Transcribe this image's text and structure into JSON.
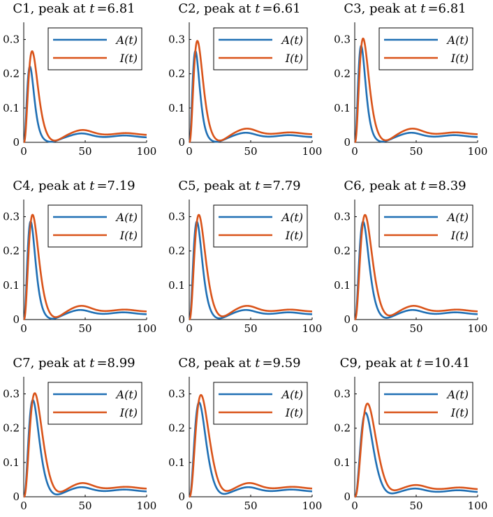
{
  "chart_data": [
    {
      "type": "line",
      "title": "C1, peak at t =6.81",
      "title_prefix": "C1, peak at ",
      "title_var": "t",
      "title_value": "=6.81",
      "xlim": [
        0,
        100
      ],
      "ylim": [
        0,
        0.35
      ],
      "xticks": [
        0,
        50,
        100
      ],
      "yticks": [
        0,
        0.1,
        0.2,
        0.3
      ],
      "xtick_labels": [
        "0",
        "50",
        "100"
      ],
      "ytick_labels": [
        "0",
        "0.1",
        "0.2",
        "0.3"
      ],
      "legend": [
        "A(t)",
        "I(t)"
      ],
      "legend_position": "top-right",
      "series": [
        {
          "name": "A(t)",
          "color": "#1f6fb4",
          "peak_t": 5.0,
          "peak_value": 0.22,
          "bump_t": 47,
          "bump_value": 0.026,
          "tail_value": 0.014
        },
        {
          "name": "I(t)",
          "color": "#d95319",
          "peak_t": 6.81,
          "peak_value": 0.265,
          "bump_t": 48,
          "bump_value": 0.036,
          "tail_value": 0.021
        }
      ]
    },
    {
      "type": "line",
      "title": "C2, peak at t =6.61",
      "title_prefix": "C2, peak at ",
      "title_var": "t",
      "title_value": "=6.61",
      "xlim": [
        0,
        100
      ],
      "ylim": [
        0,
        0.35
      ],
      "xticks": [
        0,
        50,
        100
      ],
      "yticks": [
        0,
        0.1,
        0.2,
        0.3
      ],
      "xtick_labels": [
        "0",
        "50",
        "100"
      ],
      "ytick_labels": [
        "0",
        "0.1",
        "0.2",
        "0.3"
      ],
      "legend": [
        "A(t)",
        "I(t)"
      ],
      "legend_position": "top-right",
      "series": [
        {
          "name": "A(t)",
          "color": "#1f6fb4",
          "peak_t": 5.0,
          "peak_value": 0.265,
          "bump_t": 46,
          "bump_value": 0.028,
          "tail_value": 0.015
        },
        {
          "name": "I(t)",
          "color": "#d95319",
          "peak_t": 6.61,
          "peak_value": 0.295,
          "bump_t": 47,
          "bump_value": 0.04,
          "tail_value": 0.023
        }
      ]
    },
    {
      "type": "line",
      "title": "C3, peak at t =6.81",
      "title_prefix": "C3, peak at ",
      "title_var": "t",
      "title_value": "=6.81",
      "xlim": [
        0,
        100
      ],
      "ylim": [
        0,
        0.35
      ],
      "xticks": [
        0,
        50,
        100
      ],
      "yticks": [
        0,
        0.1,
        0.2,
        0.3
      ],
      "xtick_labels": [
        "0",
        "50",
        "100"
      ],
      "ytick_labels": [
        "0",
        "0.1",
        "0.2",
        "0.3"
      ],
      "legend": [
        "A(t)",
        "I(t)"
      ],
      "legend_position": "top-right",
      "series": [
        {
          "name": "A(t)",
          "color": "#1f6fb4",
          "peak_t": 5.2,
          "peak_value": 0.28,
          "bump_t": 46,
          "bump_value": 0.028,
          "tail_value": 0.015
        },
        {
          "name": "I(t)",
          "color": "#d95319",
          "peak_t": 6.81,
          "peak_value": 0.302,
          "bump_t": 47,
          "bump_value": 0.04,
          "tail_value": 0.023
        }
      ]
    },
    {
      "type": "line",
      "title": "C4, peak at t =7.19",
      "title_prefix": "C4, peak at ",
      "title_var": "t",
      "title_value": "=7.19",
      "xlim": [
        0,
        100
      ],
      "ylim": [
        0,
        0.35
      ],
      "xticks": [
        0,
        50,
        100
      ],
      "yticks": [
        0,
        0.1,
        0.2,
        0.3
      ],
      "xtick_labels": [
        "0",
        "50",
        "100"
      ],
      "ytick_labels": [
        "0",
        "0.1",
        "0.2",
        "0.3"
      ],
      "legend": [
        "A(t)",
        "I(t)"
      ],
      "legend_position": "top-right",
      "series": [
        {
          "name": "A(t)",
          "color": "#1f6fb4",
          "peak_t": 5.6,
          "peak_value": 0.285,
          "bump_t": 46,
          "bump_value": 0.028,
          "tail_value": 0.015
        },
        {
          "name": "I(t)",
          "color": "#d95319",
          "peak_t": 7.19,
          "peak_value": 0.305,
          "bump_t": 47,
          "bump_value": 0.04,
          "tail_value": 0.023
        }
      ]
    },
    {
      "type": "line",
      "title": "C5, peak at t =7.79",
      "title_prefix": "C5, peak at ",
      "title_var": "t",
      "title_value": "=7.79",
      "xlim": [
        0,
        100
      ],
      "ylim": [
        0,
        0.35
      ],
      "xticks": [
        0,
        50,
        100
      ],
      "yticks": [
        0,
        0.1,
        0.2,
        0.3
      ],
      "xtick_labels": [
        "0",
        "50",
        "100"
      ],
      "ytick_labels": [
        "0",
        "0.1",
        "0.2",
        "0.3"
      ],
      "legend": [
        "A(t)",
        "I(t)"
      ],
      "legend_position": "top-right",
      "series": [
        {
          "name": "A(t)",
          "color": "#1f6fb4",
          "peak_t": 6.2,
          "peak_value": 0.285,
          "bump_t": 46,
          "bump_value": 0.028,
          "tail_value": 0.015
        },
        {
          "name": "I(t)",
          "color": "#d95319",
          "peak_t": 7.79,
          "peak_value": 0.305,
          "bump_t": 47,
          "bump_value": 0.04,
          "tail_value": 0.023
        }
      ]
    },
    {
      "type": "line",
      "title": "C6, peak at t =8.39",
      "title_prefix": "C6, peak at ",
      "title_var": "t",
      "title_value": "=8.39",
      "xlim": [
        0,
        100
      ],
      "ylim": [
        0,
        0.35
      ],
      "xticks": [
        0,
        50,
        100
      ],
      "yticks": [
        0,
        0.1,
        0.2,
        0.3
      ],
      "xtick_labels": [
        "0",
        "50",
        "100"
      ],
      "ytick_labels": [
        "0",
        "0.1",
        "0.2",
        "0.3"
      ],
      "legend": [
        "A(t)",
        "I(t)"
      ],
      "legend_position": "top-right",
      "series": [
        {
          "name": "A(t)",
          "color": "#1f6fb4",
          "peak_t": 6.8,
          "peak_value": 0.285,
          "bump_t": 47,
          "bump_value": 0.028,
          "tail_value": 0.015
        },
        {
          "name": "I(t)",
          "color": "#d95319",
          "peak_t": 8.39,
          "peak_value": 0.305,
          "bump_t": 48,
          "bump_value": 0.04,
          "tail_value": 0.023
        }
      ]
    },
    {
      "type": "line",
      "title": "C7, peak at t =8.99",
      "title_prefix": "C7, peak at ",
      "title_var": "t",
      "title_value": "=8.99",
      "xlim": [
        0,
        100
      ],
      "ylim": [
        0,
        0.35
      ],
      "xticks": [
        0,
        50,
        100
      ],
      "yticks": [
        0,
        0.1,
        0.2,
        0.3
      ],
      "xtick_labels": [
        "0",
        "50",
        "100"
      ],
      "ytick_labels": [
        "0",
        "0.1",
        "0.2",
        "0.3"
      ],
      "legend": [
        "A(t)",
        "I(t)"
      ],
      "legend_position": "top-right",
      "series": [
        {
          "name": "A(t)",
          "color": "#1f6fb4",
          "peak_t": 7.4,
          "peak_value": 0.282,
          "bump_t": 47,
          "bump_value": 0.028,
          "tail_value": 0.015
        },
        {
          "name": "I(t)",
          "color": "#d95319",
          "peak_t": 8.99,
          "peak_value": 0.302,
          "bump_t": 48,
          "bump_value": 0.04,
          "tail_value": 0.023
        }
      ]
    },
    {
      "type": "line",
      "title": "C8, peak at t =9.59",
      "title_prefix": "C8, peak at ",
      "title_var": "t",
      "title_value": "=9.59",
      "xlim": [
        0,
        100
      ],
      "ylim": [
        0,
        0.35
      ],
      "xticks": [
        0,
        50,
        100
      ],
      "yticks": [
        0,
        0.1,
        0.2,
        0.3
      ],
      "xtick_labels": [
        "0",
        "50",
        "100"
      ],
      "ytick_labels": [
        "0",
        "0.1",
        "0.2",
        "0.3"
      ],
      "legend": [
        "A(t)",
        "I(t)"
      ],
      "legend_position": "top-right",
      "series": [
        {
          "name": "A(t)",
          "color": "#1f6fb4",
          "peak_t": 8.0,
          "peak_value": 0.275,
          "bump_t": 48,
          "bump_value": 0.028,
          "tail_value": 0.015
        },
        {
          "name": "I(t)",
          "color": "#d95319",
          "peak_t": 9.59,
          "peak_value": 0.297,
          "bump_t": 49,
          "bump_value": 0.04,
          "tail_value": 0.023
        }
      ]
    },
    {
      "type": "line",
      "title": "C9, peak at t =10.41",
      "title_prefix": "C9, peak at ",
      "title_var": "t",
      "title_value": "=10.41",
      "xlim": [
        0,
        100
      ],
      "ylim": [
        0,
        0.35
      ],
      "xticks": [
        0,
        50,
        100
      ],
      "yticks": [
        0,
        0.1,
        0.2,
        0.3
      ],
      "xtick_labels": [
        "0",
        "50",
        "100"
      ],
      "ytick_labels": [
        "0",
        "0.1",
        "0.2",
        "0.3"
      ],
      "legend": [
        "A(t)",
        "I(t)"
      ],
      "legend_position": "top-right",
      "series": [
        {
          "name": "A(t)",
          "color": "#1f6fb4",
          "peak_t": 8.8,
          "peak_value": 0.245,
          "bump_t": 49,
          "bump_value": 0.024,
          "tail_value": 0.013
        },
        {
          "name": "I(t)",
          "color": "#d95319",
          "peak_t": 10.41,
          "peak_value": 0.272,
          "bump_t": 50,
          "bump_value": 0.034,
          "tail_value": 0.021
        }
      ]
    }
  ]
}
